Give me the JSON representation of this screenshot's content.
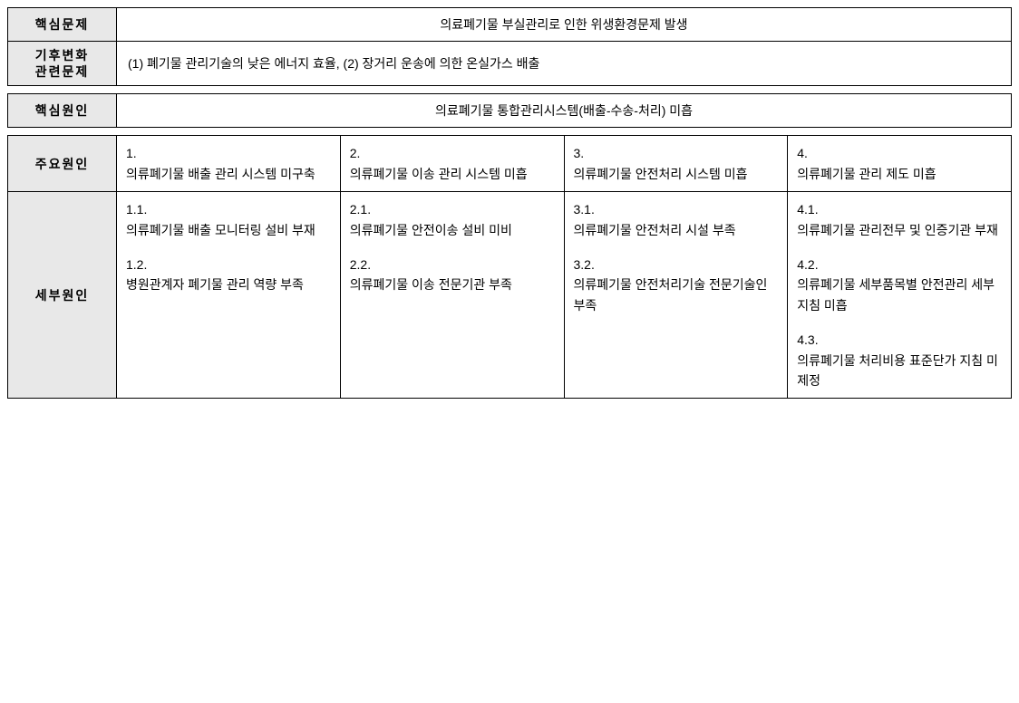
{
  "table1": {
    "row1": {
      "label": "핵심문제",
      "content": "의료폐기물 부실관리로 인한 위생환경문제 발생"
    },
    "row2": {
      "label_line1": "기후변화",
      "label_line2": "관련문제",
      "content": "(1) 폐기물 관리기술의 낮은 에너지 효율, (2) 장거리 운송에 의한 온실가스 배출"
    }
  },
  "table2": {
    "row1": {
      "label": "핵심원인",
      "content": "의료폐기물 통합관리시스템(배출-수송-처리) 미흡"
    }
  },
  "table3": {
    "main_causes": {
      "label": "주요원인",
      "cols": [
        {
          "num": "1.",
          "text": "의류폐기물 배출 관리 시스템 미구축"
        },
        {
          "num": "2.",
          "text": "의류폐기물 이송 관리 시스템 미흡"
        },
        {
          "num": "3.",
          "text": "의류폐기물 안전처리 시스템 미흡"
        },
        {
          "num": "4.",
          "text": "의류폐기물 관리 제도 미흡"
        }
      ]
    },
    "detail_causes": {
      "label": "세부원인",
      "cols": [
        [
          {
            "num": "1.1.",
            "text": "의류폐기물 배출 모니터링 설비 부재"
          },
          {
            "num": "1.2.",
            "text": "병원관계자 폐기물 관리 역량 부족"
          }
        ],
        [
          {
            "num": "2.1.",
            "text": "의류폐기물 안전이송 설비 미비"
          },
          {
            "num": "2.2.",
            "text": "의류폐기물 이송 전문기관 부족"
          }
        ],
        [
          {
            "num": "3.1.",
            "text": "의류폐기물 안전처리 시설 부족"
          },
          {
            "num": "3.2.",
            "text": "의류폐기물 안전처리기술 전문기술인 부족"
          }
        ],
        [
          {
            "num": "4.1.",
            "text": "의류폐기물 관리전무 및 인증기관 부재"
          },
          {
            "num": "4.2.",
            "text": "의류폐기물 세부품목별 안전관리 세부 지침 미흡"
          },
          {
            "num": "4.3.",
            "text": "의류폐기물 처리비용 표준단가 지침 미제정"
          }
        ]
      ]
    }
  }
}
